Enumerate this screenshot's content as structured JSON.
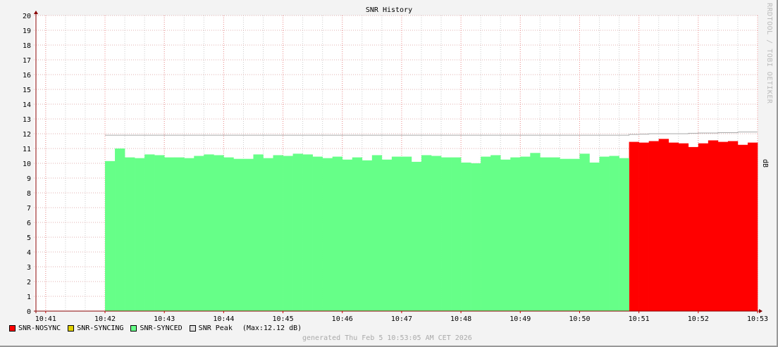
{
  "chart_data": {
    "type": "area",
    "title": "SNR History",
    "ylabel": "dB",
    "watermark": "RRDTOOL / TOBI OETIKER",
    "ylim": [
      0,
      20
    ],
    "yticks": [
      0,
      1,
      2,
      3,
      4,
      5,
      6,
      7,
      8,
      9,
      10,
      11,
      12,
      13,
      14,
      15,
      16,
      17,
      18,
      19,
      20
    ],
    "xlim": [
      "10:40:48",
      "10:53:00"
    ],
    "xticks": [
      "10:41",
      "10:42",
      "10:43",
      "10:44",
      "10:45",
      "10:46",
      "10:47",
      "10:48",
      "10:49",
      "10:50",
      "10:51",
      "10:52",
      "10:53"
    ],
    "grid": true,
    "step_seconds": 10,
    "series": [
      {
        "name": "SNR-NOSYNC",
        "color": "#ff0000",
        "x_start": "10:50:50",
        "values": [
          11.45,
          11.4,
          11.5,
          11.65,
          11.4,
          11.35,
          11.1,
          11.35,
          11.55,
          11.45,
          11.5,
          11.25,
          11.4
        ]
      },
      {
        "name": "SNR-SYNCING",
        "color": "#e0d000",
        "x_start": null,
        "values": []
      },
      {
        "name": "SNR-SYNCED",
        "color": "#66ff88",
        "x_start": "10:42:00",
        "values": [
          10.15,
          11.0,
          10.4,
          10.35,
          10.6,
          10.55,
          10.4,
          10.4,
          10.35,
          10.5,
          10.6,
          10.55,
          10.4,
          10.3,
          10.3,
          10.6,
          10.35,
          10.55,
          10.5,
          10.65,
          10.6,
          10.45,
          10.35,
          10.45,
          10.25,
          10.4,
          10.2,
          10.55,
          10.25,
          10.45,
          10.45,
          10.1,
          10.55,
          10.5,
          10.4,
          10.4,
          10.05,
          10.0,
          10.45,
          10.55,
          10.25,
          10.4,
          10.45,
          10.7,
          10.4,
          10.4,
          10.3,
          10.3,
          10.65,
          10.05,
          10.45,
          10.5,
          10.35
        ]
      },
      {
        "name": "SNR Peak",
        "color": "#cccccc",
        "x_start": "10:42:00",
        "values": [
          11.9,
          11.9,
          11.9,
          11.9,
          11.9,
          11.9,
          11.9,
          11.9,
          11.9,
          11.9,
          11.9,
          11.9,
          11.9,
          11.9,
          11.9,
          11.9,
          11.9,
          11.9,
          11.9,
          11.9,
          11.9,
          11.9,
          11.9,
          11.9,
          11.9,
          11.9,
          11.9,
          11.9,
          11.9,
          11.9,
          11.9,
          11.9,
          11.9,
          11.9,
          11.9,
          11.9,
          11.9,
          11.9,
          11.9,
          11.9,
          11.9,
          11.9,
          11.9,
          11.9,
          11.9,
          11.9,
          11.9,
          11.9,
          11.9,
          11.9,
          11.9,
          11.9,
          11.9,
          11.95,
          11.97,
          12.0,
          12.0,
          12.0,
          12.0,
          12.03,
          12.05,
          12.05,
          12.07,
          12.07,
          12.12,
          12.12
        ]
      }
    ],
    "legend": {
      "position": "bottom-left",
      "items": [
        "SNR-NOSYNC",
        "SNR-SYNCING",
        "SNR-SYNCED",
        "SNR Peak"
      ],
      "peak_note": "(Max:12.12 dB)"
    },
    "footer": "generated Thu Feb  5 10:53:05 AM CET 2026"
  }
}
